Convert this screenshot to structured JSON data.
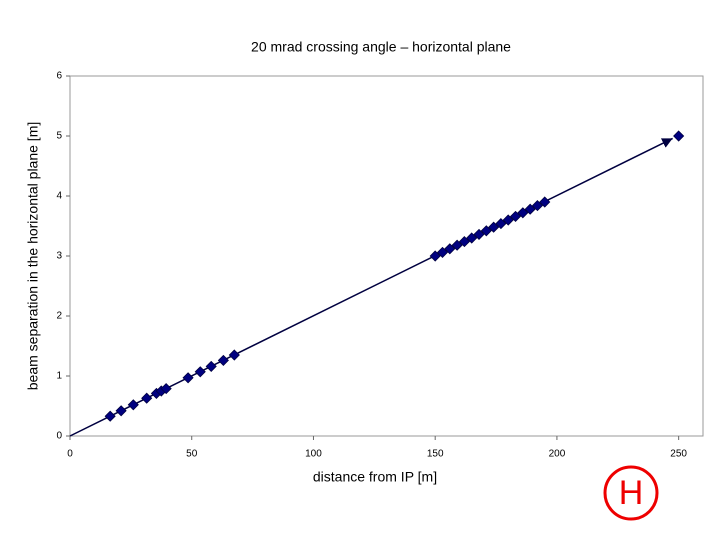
{
  "chart_data": {
    "type": "scatter",
    "title": "20 mrad crossing angle – horizontal plane",
    "xlabel": "distance from IP [m]",
    "ylabel": "beam separation in the horizontal plane [m]",
    "x": [
      16.5,
      21,
      26,
      31.5,
      35.5,
      37.5,
      39.5,
      48.5,
      53.5,
      58,
      63,
      67.5,
      150,
      153,
      156,
      159,
      162,
      165,
      168,
      171,
      174,
      177,
      180,
      183,
      186,
      189,
      192,
      195,
      250
    ],
    "values": [
      0.33,
      0.42,
      0.52,
      0.63,
      0.71,
      0.75,
      0.79,
      0.97,
      1.07,
      1.16,
      1.26,
      1.35,
      3.0,
      3.06,
      3.12,
      3.18,
      3.24,
      3.3,
      3.36,
      3.42,
      3.48,
      3.54,
      3.6,
      3.66,
      3.72,
      3.78,
      3.84,
      3.9,
      5.0
    ],
    "color": "#000080",
    "arrow": {
      "x": [
        0,
        250
      ],
      "y": [
        0,
        5
      ]
    },
    "xlim": [
      0,
      260
    ],
    "xticks": [
      0,
      50,
      100,
      150,
      200,
      250
    ],
    "ylim": [
      0,
      6
    ],
    "yticks": [
      0,
      1,
      2,
      3,
      4,
      5,
      6
    ],
    "logo": "H"
  }
}
